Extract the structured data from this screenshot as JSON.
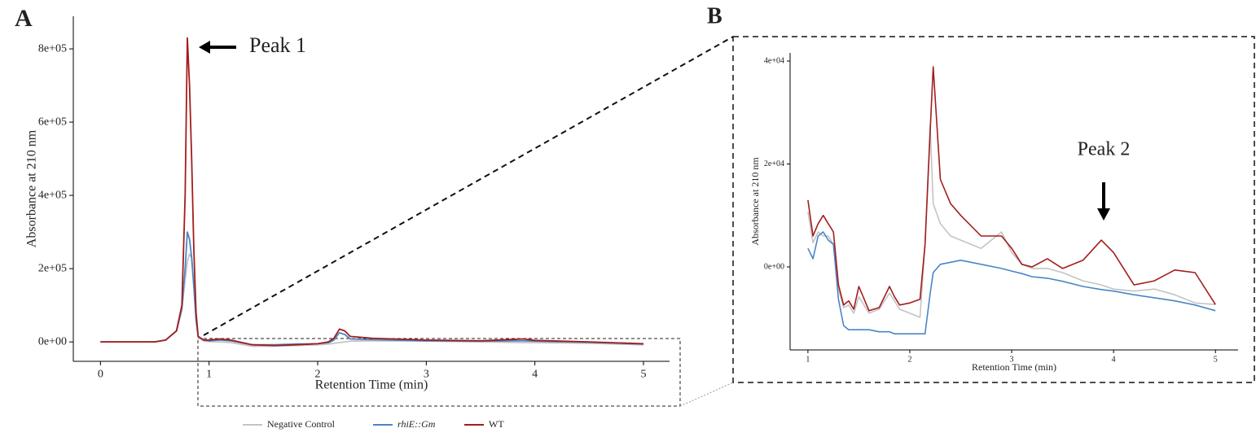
{
  "chart_data": [
    {
      "type": "line",
      "panel_label": "A",
      "xlabel": "Retention Time (min)",
      "ylabel": "Absorbance at 210 nm",
      "annotation": "Peak 1",
      "xlim": [
        -0.25,
        5.24
      ],
      "ylim": [
        -53000,
        889000
      ],
      "xticks": [
        0,
        1,
        2,
        3,
        4,
        5
      ],
      "yticks": [
        {
          "value": 0,
          "label": "0e+00"
        },
        {
          "value": 200000,
          "label": "2e+05"
        },
        {
          "value": 400000,
          "label": "4e+05"
        },
        {
          "value": 600000,
          "label": "6e+05"
        },
        {
          "value": 800000,
          "label": "8e+05"
        }
      ],
      "x": [
        0,
        0.5,
        0.6,
        0.7,
        0.75,
        0.78,
        0.8,
        0.82,
        0.84,
        0.86,
        0.88,
        0.9,
        0.95,
        1.0,
        1.1,
        1.2,
        1.4,
        1.6,
        1.8,
        2.0,
        2.1,
        2.15,
        2.2,
        2.25,
        2.3,
        2.5,
        3,
        3.5,
        3.9,
        4,
        4.5,
        5
      ],
      "series": [
        {
          "name": "Negative Control",
          "color": "#c4c4c4",
          "values": [
            0,
            0,
            5000,
            30000,
            90000,
            170000,
            220000,
            240000,
            230000,
            150000,
            60000,
            12000,
            3000,
            1000,
            0,
            -2000,
            -12000,
            -12000,
            -10000,
            -8000,
            -6000,
            -4000,
            -2000,
            0,
            2000,
            3000,
            2000,
            0,
            -2000,
            -2000,
            -4000,
            -8000
          ]
        },
        {
          "name": "rhiE::Gm",
          "color": "#4a86c5",
          "values": [
            0,
            0,
            5000,
            30000,
            90000,
            200000,
            300000,
            280000,
            230000,
            150000,
            60000,
            15000,
            5000,
            3000,
            5000,
            3000,
            -8000,
            -8000,
            -6000,
            -5000,
            -2000,
            5000,
            25000,
            20000,
            8000,
            6000,
            3000,
            2000,
            3000,
            2000,
            -1000,
            -6000
          ]
        },
        {
          "name": "WT",
          "color": "#a31d1d",
          "values": [
            0,
            0,
            5000,
            30000,
            100000,
            400000,
            830000,
            700000,
            500000,
            250000,
            80000,
            15000,
            5000,
            5000,
            8000,
            5000,
            -8000,
            -10000,
            -8000,
            -5000,
            0,
            10000,
            35000,
            30000,
            15000,
            10000,
            5000,
            3000,
            8000,
            4000,
            0,
            -5000
          ]
        }
      ]
    },
    {
      "type": "line",
      "panel_label": "B",
      "xlabel": "Retention Time (min)",
      "ylabel": "Absorbance at 210 nm",
      "annotation": "Peak 2",
      "xlim": [
        0.825,
        5.222
      ],
      "ylim": [
        -16127,
        41581
      ],
      "xticks": [
        1,
        2,
        3,
        4,
        5
      ],
      "yticks": [
        {
          "value": 0,
          "label": "0e+00"
        },
        {
          "value": 20000,
          "label": "2e+04"
        },
        {
          "value": 40000,
          "label": "4e+04"
        }
      ],
      "x": [
        1.0,
        1.05,
        1.1,
        1.15,
        1.2,
        1.25,
        1.3,
        1.35,
        1.4,
        1.45,
        1.5,
        1.6,
        1.7,
        1.8,
        1.85,
        1.9,
        2.0,
        2.1,
        2.15,
        2.2,
        2.23,
        2.3,
        2.4,
        2.5,
        2.7,
        2.9,
        3.0,
        3.1,
        3.2,
        3.35,
        3.5,
        3.7,
        3.88,
        4.0,
        4.2,
        4.4,
        4.6,
        4.8,
        5.0
      ],
      "series": [
        {
          "color": "#c4c4c4",
          "values": [
            10700,
            4700,
            6800,
            6000,
            6000,
            4400,
            -4300,
            -7900,
            -7400,
            -9000,
            -5800,
            -9000,
            -8200,
            -5100,
            -6600,
            -8200,
            -9000,
            -9800,
            4400,
            27400,
            12300,
            8400,
            6000,
            5200,
            3600,
            6800,
            2800,
            500,
            -300,
            -300,
            -1100,
            -2700,
            -3500,
            -4300,
            -4700,
            -4300,
            -5400,
            -7000,
            -7300
          ]
        },
        {
          "color": "#4a86c5",
          "values": [
            3600,
            1600,
            6000,
            6800,
            5200,
            4400,
            -6300,
            -11400,
            -12200,
            -12200,
            -12200,
            -12200,
            -12600,
            -12600,
            -13000,
            -13000,
            -13000,
            -13000,
            -13000,
            -5100,
            -1100,
            500,
            900,
            1300,
            500,
            -300,
            -800,
            -1300,
            -1900,
            -2200,
            -2800,
            -3800,
            -4400,
            -4700,
            -5400,
            -6000,
            -6600,
            -7400,
            -8500
          ]
        },
        {
          "color": "#a31d1d",
          "values": [
            13000,
            6000,
            8400,
            10000,
            8400,
            6800,
            -3500,
            -7400,
            -6600,
            -8200,
            -3800,
            -8500,
            -7900,
            -3800,
            -5800,
            -7400,
            -7000,
            -6300,
            4400,
            26500,
            38900,
            17000,
            12300,
            10000,
            6000,
            6000,
            3600,
            500,
            0,
            1600,
            -300,
            1300,
            5200,
            2800,
            -3500,
            -2700,
            -600,
            -1100,
            -7300
          ]
        }
      ]
    }
  ]
}
